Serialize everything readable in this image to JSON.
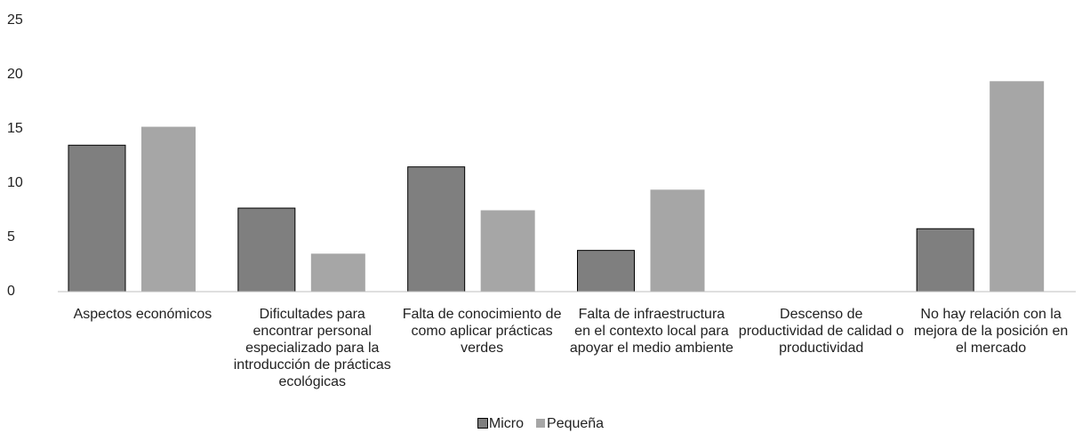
{
  "chart_data": {
    "type": "bar",
    "categories": [
      "Aspectos económicos",
      "Dificultades para encontrar personal especializado para la introducción de prácticas ecológicas",
      "Falta de conocimiento de como aplicar prácticas verdes",
      "Falta de infraestructura en el contexto local para apoyar el medio ambiente",
      "Descenso de productividad de calidad o productividad",
      "No hay relación con la mejora de la posición en el mercado"
    ],
    "series": [
      {
        "name": "Micro",
        "color": "#7f7f7f",
        "values": [
          13.5,
          7.7,
          11.5,
          3.8,
          0,
          5.8
        ]
      },
      {
        "name": "Pequeña",
        "color": "#a6a6a6",
        "values": [
          15.2,
          3.5,
          7.5,
          9.4,
          0,
          19.4
        ]
      }
    ],
    "ylim": [
      0,
      25
    ],
    "yticks": [
      0,
      5,
      10,
      15,
      20,
      25
    ],
    "grid": false,
    "legend": "bottom"
  }
}
